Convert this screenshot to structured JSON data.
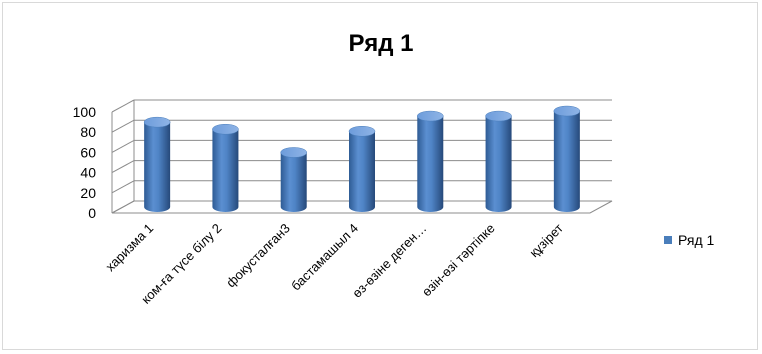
{
  "chart_data": {
    "type": "bar",
    "variant": "3d-cylinder",
    "title": "Ряд 1",
    "categories": [
      "харизма 1",
      "ком-ға түсе білу 2",
      "фокусталған3",
      "бастамашыл 4",
      "өз-өзіне деген…",
      "өзін-өзі тәртіпке",
      "құзірет"
    ],
    "series": [
      {
        "name": "Ряд 1",
        "values": [
          84,
          77,
          54,
          75,
          90,
          90,
          95
        ],
        "color": "#4a7ebb"
      }
    ],
    "ylim": [
      0,
      100
    ],
    "yticks": [
      0,
      20,
      40,
      60,
      80,
      100
    ],
    "xlabel": "",
    "ylabel": "",
    "grid": true,
    "legend": "right"
  }
}
